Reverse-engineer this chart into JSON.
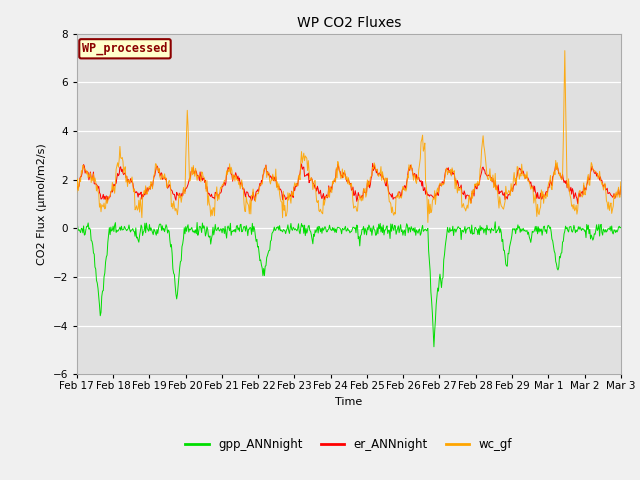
{
  "title": "WP CO2 Fluxes",
  "xlabel": "Time",
  "ylabel": "CO2 Flux (μmol/m2/s)",
  "ylim": [
    -6,
    8
  ],
  "yticks": [
    -6,
    -4,
    -2,
    0,
    2,
    4,
    6,
    8
  ],
  "background_color": "#f0f0f0",
  "plot_bg_color": "#e0e0e0",
  "legend_label": "WP_processed",
  "legend_facecolor": "#ffffcc",
  "legend_edgecolor": "#8b0000",
  "legend_text_color": "#8b0000",
  "line_gpp_color": "#00dd00",
  "line_er_color": "#ff0000",
  "line_wc_color": "#ffa500",
  "line_width": 0.7,
  "date_labels": [
    "Feb 17",
    "Feb 18",
    "Feb 19",
    "Feb 20",
    "Feb 21",
    "Feb 22",
    "Feb 23",
    "Feb 24",
    "Feb 25",
    "Feb 26",
    "Feb 27",
    "Feb 28",
    "Feb 29",
    "Mar 1",
    "Mar 2",
    "Mar 3"
  ],
  "n_days": 15,
  "pts_per_day": 48
}
